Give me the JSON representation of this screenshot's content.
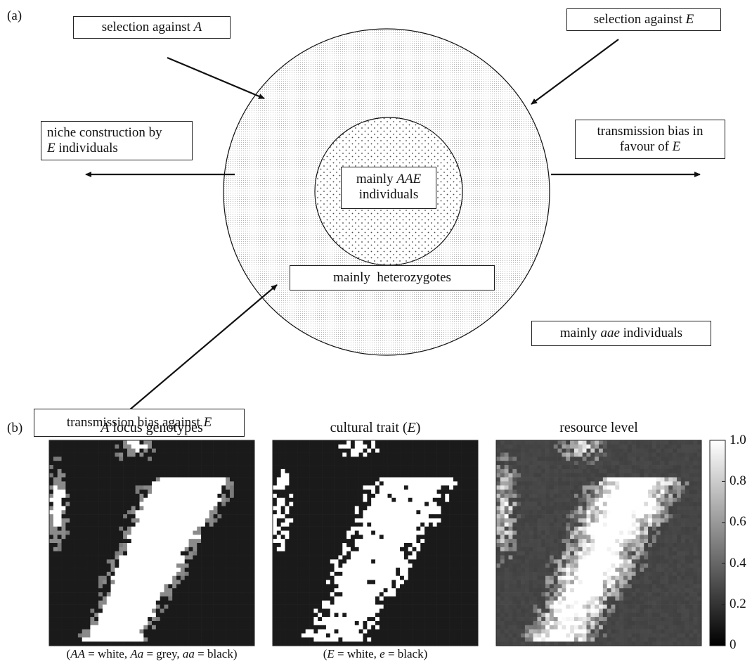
{
  "panel_a": {
    "label": "(a)",
    "boxes": {
      "sel_a": [
        "selection against ",
        {
          "i": "A"
        }
      ],
      "sel_e": [
        "selection against ",
        {
          "i": "E"
        }
      ],
      "niche_1": [
        "niche construction by"
      ],
      "niche_2": [
        {
          "i": "E"
        },
        " individuals"
      ],
      "tb_favour_1": [
        "transmission bias in"
      ],
      "tb_favour_2": [
        "favour of ",
        {
          "i": "E"
        }
      ],
      "aae_1": [
        "mainly ",
        {
          "i": "AAE"
        }
      ],
      "aae_2": [
        "individuals"
      ],
      "hetero": [
        "mainly  heterozygotes"
      ],
      "aae_lower": [
        "mainly ",
        {
          "i": "aae"
        },
        " individuals"
      ],
      "tb_against": [
        "transmission bias against ",
        {
          "i": "E"
        }
      ]
    }
  },
  "panel_b": {
    "label": "(b)",
    "maps": [
      {
        "title": [
          {
            "i": "A"
          },
          " locus genotypes"
        ],
        "caption": [
          "(",
          {
            "i": "AA"
          },
          " = white, ",
          {
            "i": "Aa"
          },
          " = grey, ",
          {
            "i": "aa"
          },
          " = black)"
        ]
      },
      {
        "title": [
          "cultural trait (",
          {
            "i": "E"
          },
          ")"
        ],
        "caption": [
          "(",
          {
            "i": "E"
          },
          " = white, ",
          {
            "i": "e"
          },
          " = black)"
        ]
      },
      {
        "title": [
          "resource level"
        ],
        "caption": [
          ""
        ]
      }
    ],
    "colorbar": {
      "ticks": [
        "1.0",
        "0.8",
        "0.6",
        "0.4",
        "0.2",
        "0"
      ]
    }
  }
}
